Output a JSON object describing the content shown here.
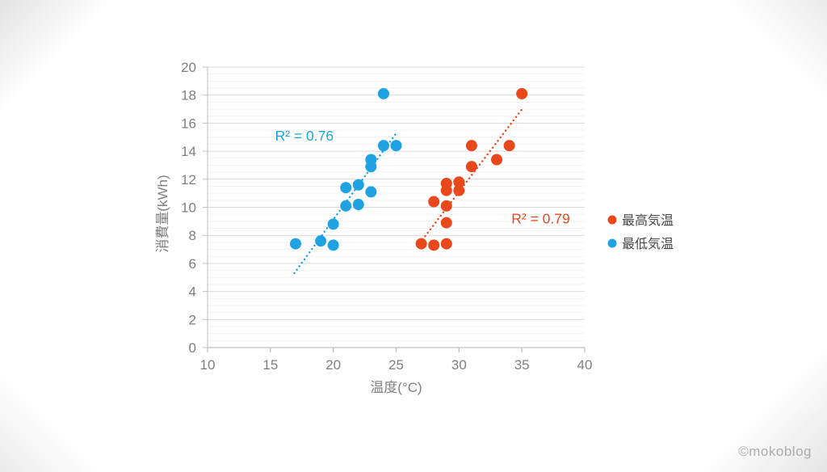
{
  "page": {
    "watermark": "©mokoblog"
  },
  "chart_data": {
    "type": "scatter",
    "title": "",
    "xlabel": "温度(°C)",
    "ylabel": "消費量(kWh)",
    "xlim": [
      10,
      40
    ],
    "ylim": [
      0,
      20
    ],
    "x_ticks": [
      10,
      15,
      20,
      25,
      30,
      35,
      40
    ],
    "y_ticks": [
      0,
      2,
      4,
      6,
      8,
      10,
      12,
      14,
      16,
      18,
      20
    ],
    "y_minor_step": 0.5,
    "grid": "horizontal major + minor, no vertical grid",
    "legend_position": "right",
    "colors": {
      "axis_line": "#BFBFBF",
      "major_grid": "#D9D9D9",
      "minor_grid": "#F2F2F2",
      "tick_label": "#7F7F7F",
      "legend_text": "#474747"
    },
    "series": [
      {
        "key": "max-temp",
        "name": "最高気温",
        "color": "#E8481C",
        "r_squared": "R² = 0.79",
        "points": [
          [
            35,
            18.1
          ],
          [
            31,
            14.4
          ],
          [
            34,
            14.4
          ],
          [
            33,
            13.4
          ],
          [
            31,
            12.9
          ],
          [
            30,
            11.8
          ],
          [
            29,
            11.7
          ],
          [
            30,
            11.2
          ],
          [
            29,
            11.2
          ],
          [
            28,
            10.4
          ],
          [
            29,
            10.1
          ],
          [
            29,
            8.9
          ],
          [
            27,
            7.4
          ],
          [
            29,
            7.4
          ],
          [
            28,
            7.3
          ]
        ],
        "trendline": {
          "style": "dotted",
          "from": [
            27.1,
            7.7
          ],
          "to": [
            35.1,
            17.1
          ]
        },
        "r2_anchor": [
          36.5,
          9.2
        ]
      },
      {
        "key": "min-temp",
        "name": "最低気温",
        "color": "#1EA2E1",
        "r_squared": "R² = 0.76",
        "points": [
          [
            24,
            18.1
          ],
          [
            24,
            14.4
          ],
          [
            25,
            14.4
          ],
          [
            23,
            13.4
          ],
          [
            23,
            12.9
          ],
          [
            22,
            11.6
          ],
          [
            21,
            11.4
          ],
          [
            23,
            11.1
          ],
          [
            22,
            10.2
          ],
          [
            21,
            10.1
          ],
          [
            20,
            8.8
          ],
          [
            19,
            7.6
          ],
          [
            17,
            7.4
          ],
          [
            20,
            7.3
          ]
        ],
        "trendline": {
          "style": "dotted",
          "from": [
            16.9,
            5.3
          ],
          "to": [
            25.1,
            15.4
          ]
        },
        "r2_anchor": [
          17.7,
          15.1
        ]
      }
    ]
  }
}
